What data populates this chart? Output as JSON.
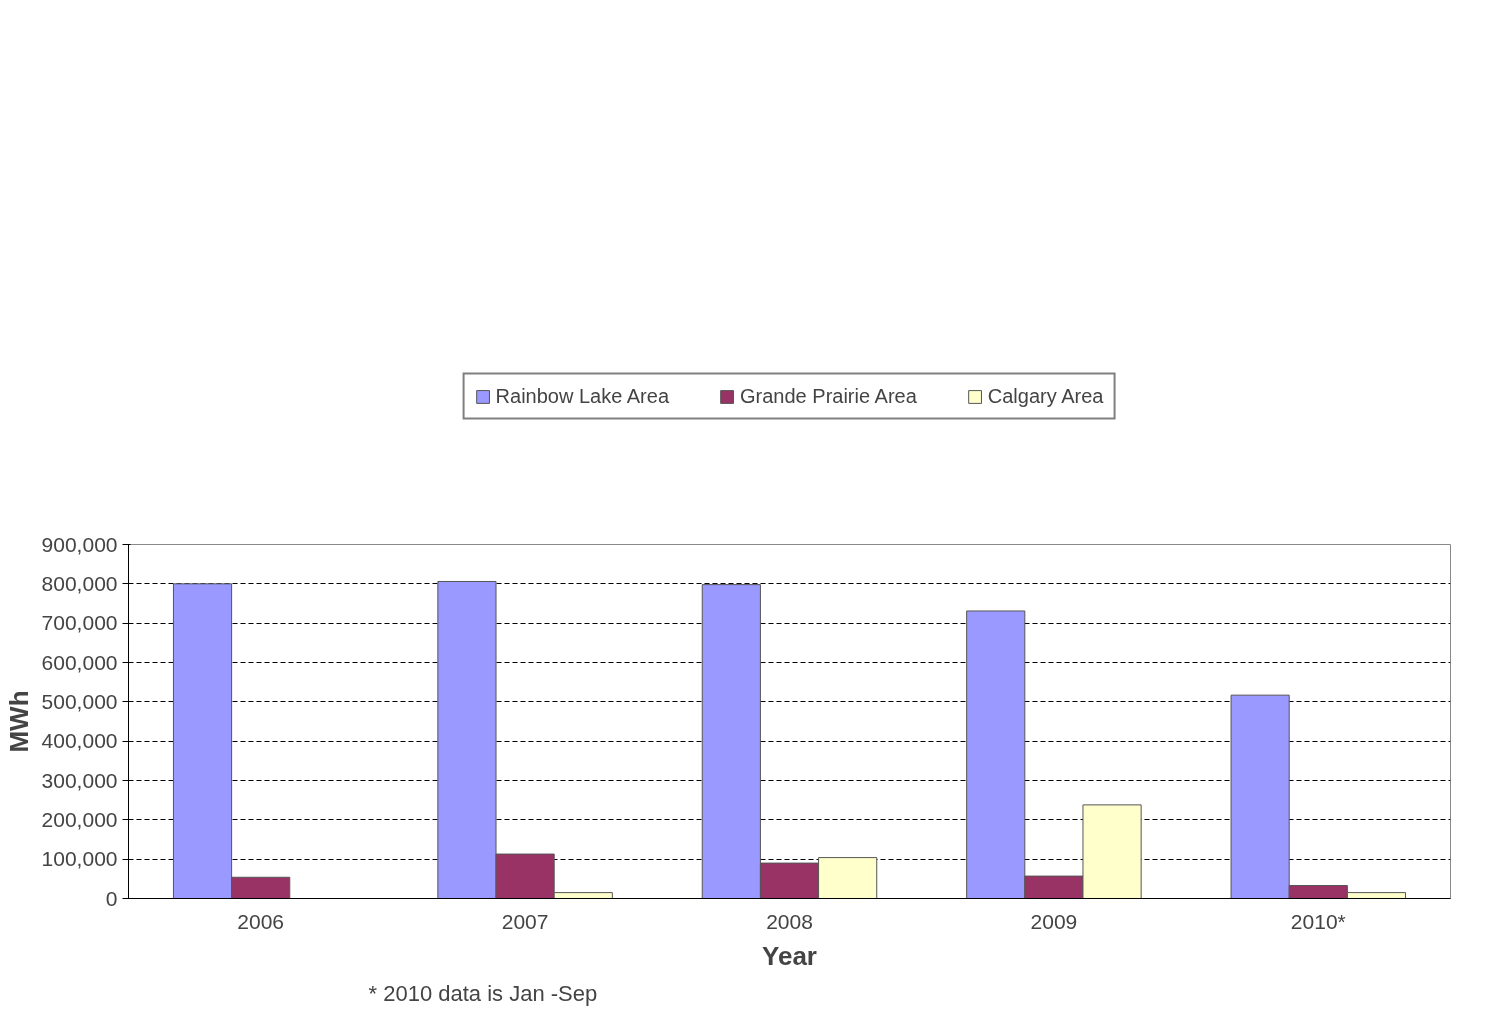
{
  "chart_data": {
    "type": "bar",
    "xlabel": "Year",
    "ylabel": "MWh",
    "categories": [
      "2006",
      "2007",
      "2008",
      "2009",
      "2010*"
    ],
    "series": [
      {
        "name": "Rainbow Lake Area",
        "color": "#9999ff",
        "values": [
          800000,
          806000,
          798000,
          731000,
          517000
        ]
      },
      {
        "name": "Grande Prairie Area",
        "color": "#993366",
        "values": [
          54000,
          113000,
          90000,
          57000,
          33000
        ]
      },
      {
        "name": "Calgary Area",
        "color": "#ffffcc",
        "values": [
          null,
          15000,
          104000,
          238000,
          15000
        ]
      }
    ],
    "ylim": [
      0,
      900000
    ],
    "yticks": [
      {
        "value": 0,
        "label": "0"
      },
      {
        "value": 100000,
        "label": "100,000"
      },
      {
        "value": 200000,
        "label": "200,000"
      },
      {
        "value": 300000,
        "label": "300,000"
      },
      {
        "value": 400000,
        "label": "400,000"
      },
      {
        "value": 500000,
        "label": "500,000"
      },
      {
        "value": 600000,
        "label": "600,000"
      },
      {
        "value": 700000,
        "label": "700,000"
      },
      {
        "value": 800000,
        "label": "800,000"
      },
      {
        "value": 900000,
        "label": "900,000"
      }
    ],
    "grid": "y",
    "legend": "top",
    "annotations": [
      "* 2010 data is Jan -Sep"
    ]
  }
}
